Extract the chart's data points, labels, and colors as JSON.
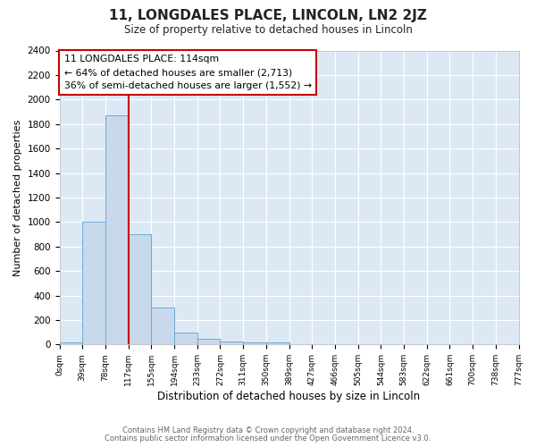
{
  "title": "11, LONGDALES PLACE, LINCOLN, LN2 2JZ",
  "subtitle": "Size of property relative to detached houses in Lincoln",
  "bar_color": "#c8d9eb",
  "bar_edge_color": "#6aaad4",
  "bin_labels": [
    "0sqm",
    "39sqm",
    "78sqm",
    "117sqm",
    "155sqm",
    "194sqm",
    "233sqm",
    "272sqm",
    "311sqm",
    "350sqm",
    "389sqm",
    "427sqm",
    "466sqm",
    "505sqm",
    "544sqm",
    "583sqm",
    "622sqm",
    "661sqm",
    "700sqm",
    "738sqm",
    "777sqm"
  ],
  "bin_values": [
    15,
    1000,
    1870,
    900,
    300,
    100,
    45,
    25,
    20,
    15,
    0,
    0,
    0,
    0,
    0,
    0,
    0,
    0,
    0,
    0
  ],
  "ylabel": "Number of detached properties",
  "xlabel": "Distribution of detached houses by size in Lincoln",
  "ylim": [
    0,
    2400
  ],
  "yticks": [
    0,
    200,
    400,
    600,
    800,
    1000,
    1200,
    1400,
    1600,
    1800,
    2000,
    2200,
    2400
  ],
  "vline_x": 117,
  "bin_width": 39,
  "annotation_line1": "11 LONGDALES PLACE: 114sqm",
  "annotation_line2": "← 64% of detached houses are smaller (2,713)",
  "annotation_line3": "36% of semi-detached houses are larger (1,552) →",
  "annotation_box_color": "#ffffff",
  "annotation_box_edge": "#cc0000",
  "vline_color": "#cc0000",
  "footer_line1": "Contains HM Land Registry data © Crown copyright and database right 2024.",
  "footer_line2": "Contains public sector information licensed under the Open Government Licence v3.0.",
  "background_color": "#ffffff",
  "plot_bg_color": "#dce9f5",
  "grid_color": "#ffffff"
}
